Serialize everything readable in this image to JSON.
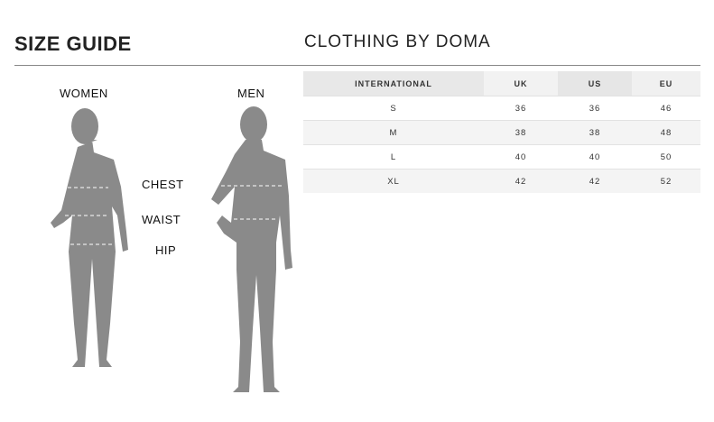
{
  "header": {
    "title": "SIZE GUIDE",
    "brand": "CLOTHING BY DOMA"
  },
  "figures": {
    "women": "WOMEN",
    "men": "MEN",
    "chest": "CHEST",
    "waist": "WAIST",
    "hip": "HIP"
  },
  "table": {
    "columns": [
      "INTERNATIONAL",
      "UK",
      "US",
      "EU"
    ],
    "rows": [
      [
        "S",
        "36",
        "36",
        "46"
      ],
      [
        "M",
        "38",
        "38",
        "48"
      ],
      [
        "L",
        "40",
        "40",
        "50"
      ],
      [
        "XL",
        "42",
        "42",
        "52"
      ]
    ]
  }
}
